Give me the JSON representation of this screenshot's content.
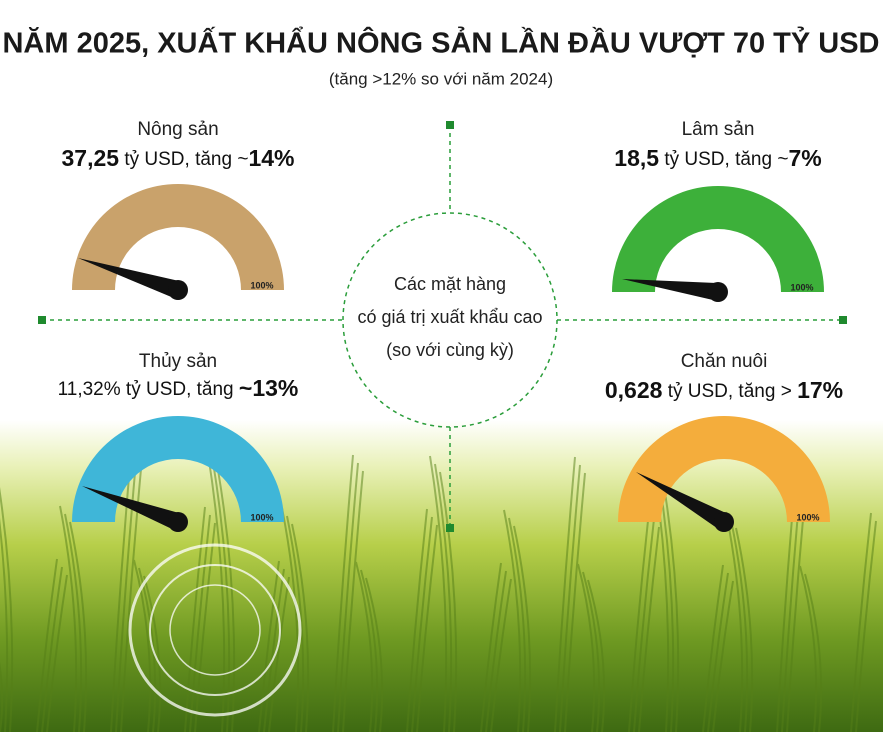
{
  "title": "NĂM 2025, XUẤT KHẨU NÔNG SẢN LẦN ĐẦU VƯỢT 70 TỶ USD",
  "subtitle": "(tăng >12% so với năm 2024)",
  "center": {
    "lines": [
      "Các mặt hàng",
      "có giá trị xuất khẩu cao",
      "(so với cùng kỳ)"
    ]
  },
  "items": [
    {
      "name": "Nông sản",
      "detail": [
        {
          "text": "37,25",
          "bold": true
        },
        {
          "text": " tỷ USD, tăng ~",
          "bold": false
        },
        {
          "text": "14%",
          "bold": true
        }
      ],
      "gauge_label": "100%",
      "color": "#c9a26b"
    },
    {
      "name": "Lâm sản",
      "detail": [
        {
          "text": "18,5",
          "bold": true
        },
        {
          "text": " tỷ USD, tăng ~",
          "bold": false
        },
        {
          "text": "7%",
          "bold": true
        }
      ],
      "gauge_label": "100%",
      "color": "#3db03a"
    },
    {
      "name": "Thủy sản",
      "detail": [
        {
          "text": "11,32% tỷ USD, tăng ",
          "bold": false
        },
        {
          "text": "~13%",
          "bold": true
        }
      ],
      "gauge_label": "100%",
      "color": "#3fb6d8"
    },
    {
      "name": "Chăn nuôi",
      "detail": [
        {
          "text": "0,628",
          "bold": true
        },
        {
          "text": " tỷ USD, tăng > ",
          "bold": false
        },
        {
          "text": "17%",
          "bold": true
        }
      ],
      "gauge_label": "100%",
      "color": "#f4ad3c"
    }
  ]
}
